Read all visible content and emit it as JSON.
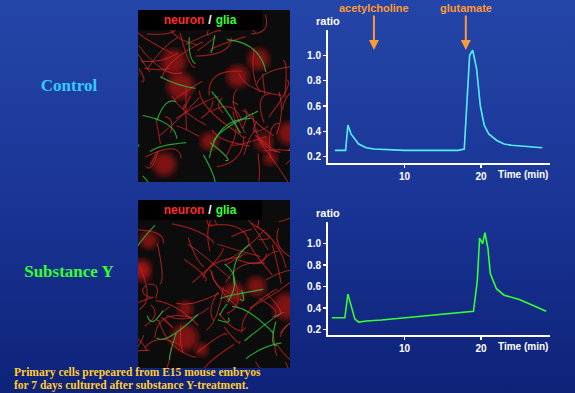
{
  "slide": {
    "rows": [
      {
        "label": "Control"
      },
      {
        "label": "Substance Y"
      }
    ],
    "image_legend": {
      "neuron": {
        "text": "neuron",
        "color": "#ff2a2a"
      },
      "separator": "/",
      "glia": {
        "text": "glia",
        "color": "#33ff33"
      }
    },
    "footnote": [
      "Primary cells prepeared from E15 mouse embryos",
      "for 7 days cultured after substance Y-treatment."
    ]
  },
  "chart_data": [
    {
      "type": "line",
      "y_label": "ratio",
      "x_label": "Time (min)",
      "x": [
        0.9,
        2.3,
        2.6,
        3.0,
        4.0,
        5.0,
        6.0,
        10.0,
        14.0,
        17.0,
        17.8,
        18.2,
        18.5,
        18.9,
        19.4,
        19.9,
        20.4,
        21.0,
        22.0,
        23.0,
        24.0,
        26.0,
        28.0
      ],
      "series": [
        {
          "color": "#55f0ff",
          "values": [
            0.25,
            0.25,
            0.45,
            0.38,
            0.3,
            0.27,
            0.26,
            0.25,
            0.25,
            0.25,
            0.26,
            0.7,
            1.0,
            1.04,
            0.9,
            0.6,
            0.45,
            0.38,
            0.33,
            0.3,
            0.29,
            0.28,
            0.27
          ]
        }
      ],
      "xlim": [
        0,
        29
      ],
      "ylim": [
        0.15,
        1.2
      ],
      "xticks": [
        10,
        20
      ],
      "yticks": [
        0.2,
        0.4,
        0.6,
        0.8,
        {
          "value": 1,
          "label": "1.0"
        }
      ],
      "annotations": [
        {
          "text": "acetylcholine",
          "x": 6
        },
        {
          "text": "glutamate",
          "x": 18
        }
      ]
    },
    {
      "type": "line",
      "y_label": "ratio",
      "x_label": "Time (min)",
      "x": [
        0.5,
        2.2,
        2.6,
        3.0,
        3.5,
        4.0,
        5.0,
        7.0,
        10.0,
        14.0,
        17.0,
        19.0,
        19.5,
        19.8,
        20.2,
        20.5,
        20.9,
        21.2,
        22.0,
        23.0,
        25.0,
        27.0,
        28.5
      ],
      "series": [
        {
          "color": "#33ff33",
          "values": [
            0.31,
            0.31,
            0.53,
            0.42,
            0.3,
            0.27,
            0.28,
            0.29,
            0.31,
            0.33,
            0.35,
            0.37,
            0.65,
            1.05,
            1.0,
            1.1,
            0.95,
            0.72,
            0.58,
            0.52,
            0.48,
            0.42,
            0.37
          ]
        }
      ],
      "xlim": [
        0,
        29
      ],
      "ylim": [
        0.15,
        1.2
      ],
      "xticks": [
        10,
        20
      ],
      "yticks": [
        0.2,
        0.4,
        0.6,
        0.8,
        {
          "value": 1,
          "label": "1.0"
        }
      ]
    }
  ]
}
